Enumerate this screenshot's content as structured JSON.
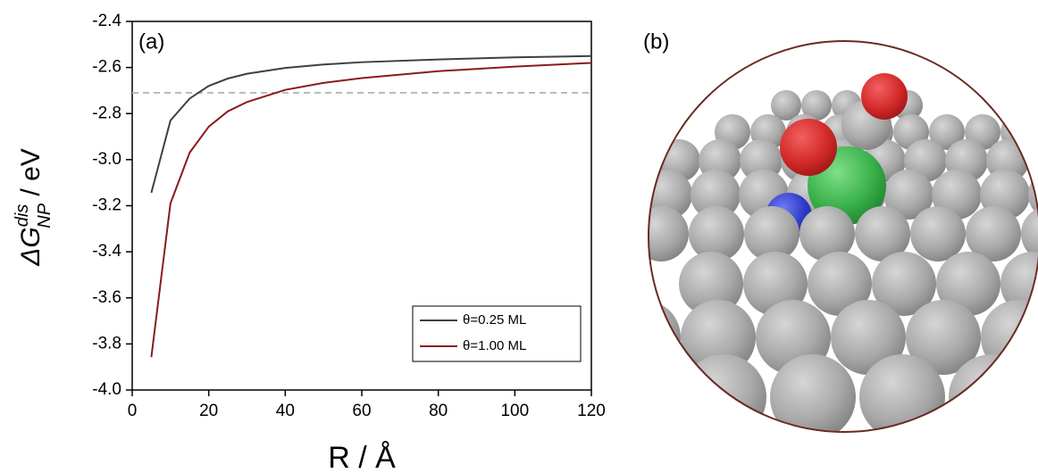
{
  "chart_data": {
    "type": "line",
    "panel_labels": [
      "(a)",
      "(b)"
    ],
    "x_label": "R / Å",
    "y_label": {
      "main": "ΔG",
      "sup": "dis",
      "sub": "NP",
      "unit": " / eV"
    },
    "x": [
      5,
      10,
      15,
      20,
      25,
      30,
      40,
      50,
      60,
      80,
      100,
      120
    ],
    "series": [
      {
        "name": "θ=0.25 ML",
        "color": "#404040",
        "values": [
          -3.144,
          -2.83,
          -2.735,
          -2.68,
          -2.648,
          -2.627,
          -2.602,
          -2.587,
          -2.577,
          -2.565,
          -2.556,
          -2.55
        ]
      },
      {
        "name": "θ=1.00 ML",
        "color": "#8b1a1a",
        "values": [
          -3.857,
          -3.19,
          -2.97,
          -2.857,
          -2.79,
          -2.75,
          -2.697,
          -2.667,
          -2.646,
          -2.616,
          -2.596,
          -2.58
        ]
      }
    ],
    "reference_line": {
      "value": -2.71,
      "color": "#bbbbbb"
    },
    "xlim": [
      0,
      120
    ],
    "xticks": [
      0,
      20,
      40,
      60,
      80,
      100,
      120
    ],
    "ylim": [
      -4,
      -2.4
    ],
    "yticks": [
      {
        "value": -4,
        "label": "-4.0"
      },
      -3.8,
      -3.6,
      -3.4,
      -3.2,
      {
        "value": -3,
        "label": "-3.0"
      },
      -2.8,
      -2.6,
      -2.4
    ],
    "legend": "lower right"
  }
}
